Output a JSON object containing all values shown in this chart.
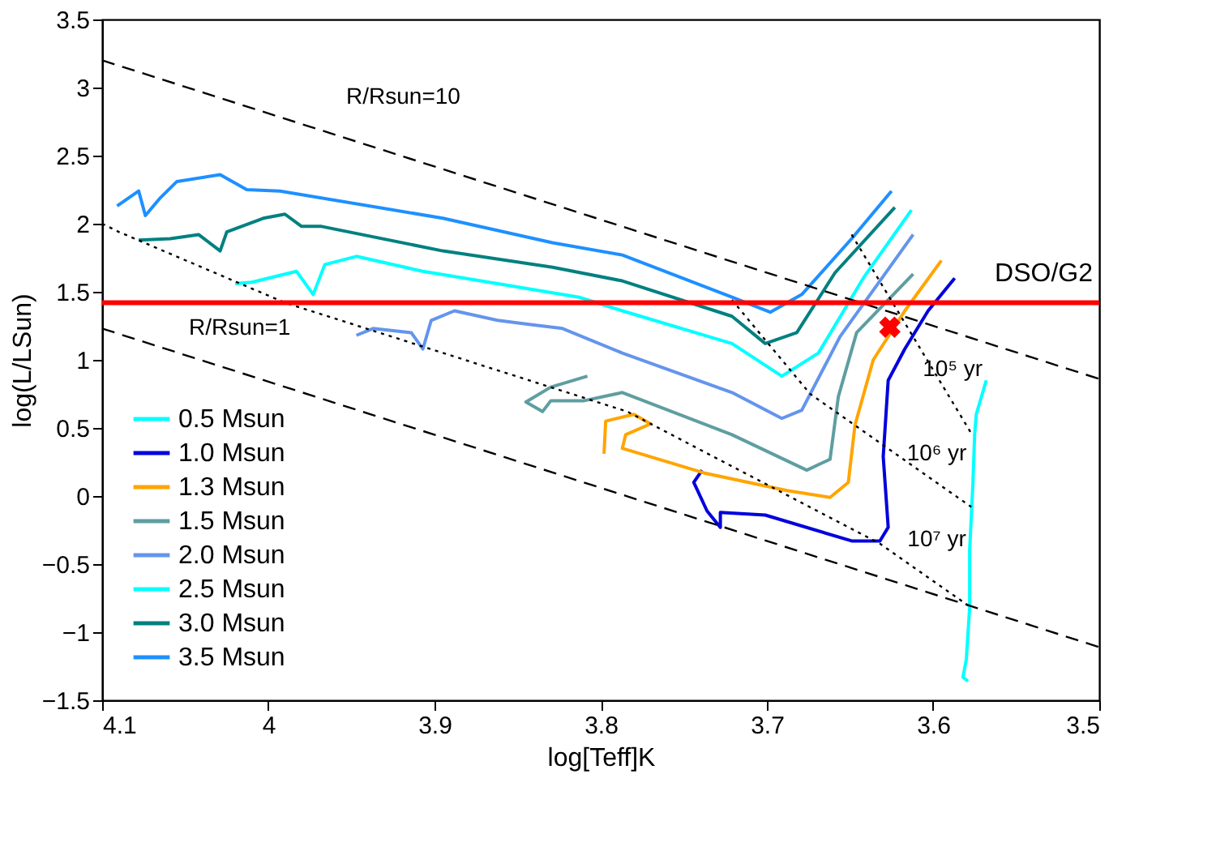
{
  "chart_data": {
    "type": "line",
    "xlabel": "log[Teff]K",
    "ylabel": "log(L/LSun)",
    "xlim": [
      4.1,
      3.5
    ],
    "xticks": [
      4.1,
      4,
      3.9,
      3.8,
      3.7,
      3.6,
      3.5
    ],
    "ylim": [
      -1.5,
      3.5
    ],
    "yticks": [
      -1.5,
      -1,
      -0.5,
      0,
      0.5,
      1,
      1.5,
      2,
      2.5,
      3,
      3.5
    ],
    "legend": "bottom left",
    "grid": false,
    "series": [
      {
        "name": "0.5 Msun",
        "color": "#00ffff",
        "x": [
          3.568,
          3.574,
          3.575,
          3.576,
          3.578,
          3.578,
          3.58,
          3.582,
          3.579
        ],
        "values": [
          0.85,
          0.6,
          0.45,
          0.1,
          -0.4,
          -0.82,
          -1.2,
          -1.33,
          -1.36
        ]
      },
      {
        "name": "1.0 Msun",
        "color": "#0000dd",
        "x": [
          3.739,
          3.744,
          3.736,
          3.728,
          3.728,
          3.701,
          3.649,
          3.632,
          3.627,
          3.63,
          3.627,
          3.617,
          3.603,
          3.587
        ],
        "values": [
          0.19,
          0.1,
          -0.11,
          -0.23,
          -0.12,
          -0.14,
          -0.33,
          -0.33,
          -0.23,
          0.29,
          0.85,
          1.08,
          1.36,
          1.6
        ]
      },
      {
        "name": "1.3 Msun",
        "color": "#ffa500",
        "x": [
          3.798,
          3.797,
          3.78,
          3.77,
          3.785,
          3.787,
          3.738,
          3.688,
          3.662,
          3.651,
          3.647,
          3.636,
          3.617,
          3.595
        ],
        "values": [
          0.31,
          0.55,
          0.6,
          0.53,
          0.45,
          0.35,
          0.17,
          0.04,
          -0.01,
          0.1,
          0.52,
          1.0,
          1.36,
          1.73
        ]
      },
      {
        "name": "1.5 Msun",
        "color": "#5f9ea0",
        "x": [
          3.808,
          3.83,
          3.845,
          3.835,
          3.83,
          3.81,
          3.787,
          3.721,
          3.676,
          3.662,
          3.657,
          3.646,
          3.612
        ],
        "values": [
          0.88,
          0.8,
          0.69,
          0.62,
          0.7,
          0.7,
          0.76,
          0.45,
          0.19,
          0.27,
          0.73,
          1.2,
          1.63
        ]
      },
      {
        "name": "2.0 Msun",
        "color": "#6495ed",
        "x": [
          3.947,
          3.937,
          3.914,
          3.907,
          3.902,
          3.888,
          3.862,
          3.843,
          3.823,
          3.787,
          3.721,
          3.691,
          3.679,
          3.656,
          3.612
        ],
        "values": [
          1.18,
          1.23,
          1.2,
          1.08,
          1.29,
          1.36,
          1.29,
          1.26,
          1.23,
          1.05,
          0.76,
          0.57,
          0.63,
          1.17,
          1.92
        ]
      },
      {
        "name": "2.5 Msun",
        "color": "#00ffff",
        "x": [
          4.02,
          4.01,
          3.983,
          3.973,
          3.966,
          3.947,
          3.907,
          3.862,
          3.813,
          3.787,
          3.721,
          3.691,
          3.669,
          3.642,
          3.613
        ],
        "values": [
          1.56,
          1.57,
          1.65,
          1.48,
          1.7,
          1.76,
          1.65,
          1.56,
          1.46,
          1.36,
          1.12,
          0.88,
          1.05,
          1.6,
          2.1
        ]
      },
      {
        "name": "3.0 Msun",
        "color": "#008080",
        "x": [
          4.078,
          4.059,
          4.042,
          4.029,
          4.025,
          4.003,
          3.99,
          3.98,
          3.968,
          3.895,
          3.829,
          3.787,
          3.721,
          3.701,
          3.682,
          3.659,
          3.623
        ],
        "values": [
          1.88,
          1.89,
          1.92,
          1.8,
          1.94,
          2.04,
          2.07,
          1.98,
          1.98,
          1.8,
          1.68,
          1.58,
          1.32,
          1.12,
          1.2,
          1.64,
          2.12
        ]
      },
      {
        "name": "3.5 Msun",
        "color": "#1e90ff",
        "x": [
          4.091,
          4.078,
          4.074,
          4.065,
          4.055,
          4.029,
          4.013,
          3.993,
          3.895,
          3.829,
          3.787,
          3.721,
          3.698,
          3.679,
          3.649,
          3.625
        ],
        "values": [
          2.13,
          2.24,
          2.06,
          2.19,
          2.31,
          2.36,
          2.25,
          2.24,
          2.04,
          1.86,
          1.77,
          1.46,
          1.35,
          1.48,
          1.89,
          2.24
        ]
      },
      {
        "color": "#000000",
        "line_style": "dashed",
        "x": [
          4.1,
          3.5
        ],
        "values": [
          3.2,
          0.86
        ]
      },
      {
        "color": "#000000",
        "line_style": "dashed",
        "x": [
          4.1,
          3.5
        ],
        "values": [
          1.23,
          -1.11
        ]
      },
      {
        "color": "#000000",
        "line_style": "dotted",
        "x": [
          4.1,
          4.09,
          3.99,
          3.784,
          3.632,
          3.577
        ],
        "values": [
          2.0,
          1.94,
          1.42,
          0.62,
          -0.35,
          -0.82
        ]
      },
      {
        "color": "#000000",
        "line_style": "dotted",
        "x": [
          3.649,
          3.577
        ],
        "values": [
          1.92,
          0.46
        ]
      },
      {
        "color": "#000000",
        "line_style": "dotted",
        "x": [
          3.721,
          3.674,
          3.577
        ],
        "values": [
          1.44,
          0.75,
          -0.08
        ]
      },
      {
        "type": "scatter",
        "marker": "cross",
        "color": "#ff0000",
        "x": [
          3.626
        ],
        "values": [
          1.24
        ]
      }
    ],
    "ref_lines": [
      {
        "axis": "y",
        "value": 1.42,
        "label": "DSO/G2",
        "color": "#ff0000"
      }
    ],
    "annotations": [
      "R/Rsun=10",
      "R/Rsun=1",
      "10⁵ yr",
      "10⁶ yr",
      "10⁷ yr"
    ]
  }
}
